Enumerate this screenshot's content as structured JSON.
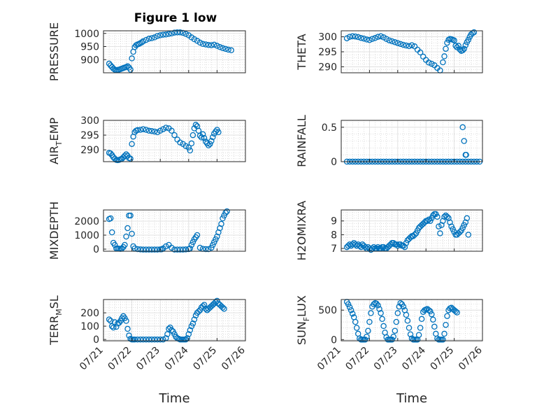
{
  "figure_title": "Figure 1 low",
  "marker_color": "#0072BD",
  "x_tick_labels": [
    "07/21",
    "07/22",
    "07/23",
    "07/24",
    "07/25",
    "07/26"
  ],
  "chart_data": [
    {
      "type": "scatter",
      "title": "Figure 1 low",
      "ylabel": "PRESSURE",
      "xlabel": "",
      "xlim": [
        0,
        5
      ],
      "ylim": [
        850,
        1010
      ],
      "yticks": [
        900,
        950,
        1000
      ],
      "grid": true,
      "x": [
        0.2,
        0.25,
        0.3,
        0.35,
        0.4,
        0.45,
        0.5,
        0.55,
        0.6,
        0.65,
        0.7,
        0.75,
        0.8,
        0.85,
        0.9,
        0.95,
        1.0,
        1.05,
        1.1,
        1.15,
        1.2,
        1.25,
        1.3,
        1.35,
        1.4,
        1.5,
        1.6,
        1.7,
        1.8,
        1.9,
        2.0,
        2.1,
        2.2,
        2.3,
        2.4,
        2.5,
        2.6,
        2.7,
        2.8,
        2.9,
        3.0,
        3.1,
        3.2,
        3.3,
        3.4,
        3.5,
        3.6,
        3.7,
        3.8,
        3.9,
        4.0,
        4.1,
        4.2,
        4.3,
        4.4,
        4.5
      ],
      "y": [
        885,
        878,
        872,
        866,
        862,
        860,
        861,
        862,
        864,
        866,
        868,
        870,
        872,
        875,
        870,
        862,
        905,
        930,
        948,
        955,
        958,
        960,
        963,
        966,
        970,
        975,
        980,
        982,
        985,
        990,
        993,
        995,
        996,
        998,
        1000,
        1003,
        1004,
        1004,
        1002,
        998,
        993,
        985,
        978,
        972,
        965,
        960,
        958,
        956,
        955,
        957,
        953,
        948,
        944,
        941,
        938,
        936
      ]
    },
    {
      "type": "scatter",
      "ylabel": "THETA",
      "xlabel": "",
      "xlim": [
        0,
        5
      ],
      "ylim": [
        288,
        302
      ],
      "yticks": [
        290,
        295,
        300
      ],
      "grid": true,
      "x": [
        0.2,
        0.3,
        0.4,
        0.5,
        0.6,
        0.7,
        0.8,
        0.9,
        1.0,
        1.1,
        1.2,
        1.3,
        1.4,
        1.5,
        1.6,
        1.7,
        1.8,
        1.9,
        2.0,
        2.1,
        2.2,
        2.3,
        2.4,
        2.5,
        2.6,
        2.7,
        2.8,
        2.9,
        3.0,
        3.1,
        3.2,
        3.3,
        3.4,
        3.5,
        3.6,
        3.65,
        3.7,
        3.75,
        3.8,
        3.85,
        3.9,
        3.95,
        4.0,
        4.05,
        4.1,
        4.15,
        4.2,
        4.25,
        4.3,
        4.35,
        4.4,
        4.45,
        4.5,
        4.55,
        4.6,
        4.65,
        4.7
      ],
      "y": [
        299.5,
        300,
        300.2,
        300.1,
        299.9,
        299.6,
        299.4,
        299.1,
        298.9,
        299.3,
        299.6,
        300,
        300.2,
        299.8,
        299.3,
        298.8,
        298.5,
        298.2,
        297.9,
        297.6,
        297.3,
        297.1,
        296.9,
        297.2,
        296.8,
        295.7,
        294.8,
        293.4,
        292.3,
        291.4,
        291.0,
        290.5,
        289.6,
        288.8,
        291.5,
        293.5,
        296.0,
        298.0,
        299.0,
        299.3,
        299.2,
        299.0,
        298.8,
        297.0,
        296.5,
        297.0,
        295.8,
        295.3,
        295.5,
        296.0,
        297.2,
        298.2,
        299.0,
        300.0,
        300.8,
        301.2,
        301.5
      ]
    },
    {
      "type": "scatter",
      "ylabel": "AIR_TEMP",
      "ylabel_main": "AIR",
      "ylabel_sub": "T",
      "ylabel_rest": "EMP",
      "xlabel": "",
      "xlim": [
        0,
        5
      ],
      "ylim": [
        286,
        300
      ],
      "yticks": [
        290,
        295,
        300
      ],
      "grid": true,
      "x": [
        0.2,
        0.25,
        0.3,
        0.35,
        0.4,
        0.45,
        0.5,
        0.55,
        0.6,
        0.65,
        0.7,
        0.75,
        0.8,
        0.85,
        0.9,
        0.95,
        1.0,
        1.05,
        1.1,
        1.15,
        1.2,
        1.3,
        1.4,
        1.5,
        1.6,
        1.7,
        1.8,
        1.9,
        2.0,
        2.1,
        2.2,
        2.3,
        2.4,
        2.5,
        2.6,
        2.7,
        2.8,
        2.9,
        3.0,
        3.05,
        3.1,
        3.15,
        3.2,
        3.25,
        3.3,
        3.35,
        3.4,
        3.45,
        3.5,
        3.55,
        3.6,
        3.65,
        3.7,
        3.75,
        3.8,
        3.85,
        3.9,
        3.95,
        4.0,
        4.05
      ],
      "y": [
        289.0,
        288.8,
        288.2,
        287.5,
        287.0,
        286.6,
        286.5,
        286.6,
        286.8,
        287.0,
        287.5,
        288.0,
        288.5,
        288.0,
        287.2,
        287.0,
        292.0,
        294.5,
        296.0,
        296.5,
        296.7,
        296.8,
        297.0,
        296.8,
        296.5,
        296.4,
        296.2,
        296.0,
        296.5,
        297.0,
        297.5,
        297.3,
        296.5,
        295.0,
        293.5,
        292.5,
        292.0,
        291.3,
        290.8,
        289.8,
        292.2,
        295.0,
        297.3,
        298.5,
        298.0,
        296.5,
        294.8,
        294.2,
        295.3,
        294.0,
        292.8,
        292.2,
        291.5,
        292.0,
        293.0,
        294.3,
        295.5,
        296.2,
        296.8,
        296.0
      ]
    },
    {
      "type": "scatter",
      "ylabel": "RAINFALL",
      "xlabel": "",
      "xlim": [
        0,
        5
      ],
      "ylim": [
        0,
        0.6
      ],
      "yticks": [
        0,
        0.5
      ],
      "ytick_labels": [
        "0",
        "0.5"
      ],
      "grid": true,
      "x": [
        0.2,
        0.3,
        0.4,
        0.5,
        0.6,
        0.7,
        0.8,
        0.9,
        1.0,
        1.1,
        1.2,
        1.3,
        1.4,
        1.5,
        1.6,
        1.7,
        1.8,
        1.9,
        2.0,
        2.1,
        2.2,
        2.3,
        2.4,
        2.5,
        2.6,
        2.7,
        2.8,
        2.9,
        3.0,
        3.1,
        3.2,
        3.3,
        3.4,
        3.5,
        3.6,
        3.7,
        3.8,
        3.9,
        4.0,
        4.1,
        4.2,
        4.3,
        4.4,
        4.5,
        4.6,
        4.7,
        4.8,
        4.9,
        4.3,
        4.35,
        4.4,
        4.42
      ],
      "y": [
        0,
        0,
        0,
        0,
        0,
        0,
        0,
        0,
        0,
        0,
        0,
        0,
        0,
        0,
        0,
        0,
        0,
        0,
        0,
        0,
        0,
        0,
        0,
        0,
        0,
        0,
        0,
        0,
        0,
        0,
        0,
        0,
        0,
        0,
        0,
        0,
        0,
        0,
        0,
        0,
        0,
        0,
        0,
        0,
        0,
        0,
        0,
        0,
        0.5,
        0.3,
        0.1,
        0.1
      ]
    },
    {
      "type": "scatter",
      "ylabel": "MIXDEPTH",
      "xlabel": "",
      "xlim": [
        0,
        5
      ],
      "ylim": [
        -150,
        2800
      ],
      "yticks": [
        0,
        1000,
        2000
      ],
      "grid": true,
      "x": [
        0.2,
        0.25,
        0.3,
        0.35,
        0.4,
        0.45,
        0.5,
        0.55,
        0.6,
        0.65,
        0.7,
        0.75,
        0.8,
        0.85,
        0.9,
        0.95,
        1.0,
        1.05,
        1.1,
        1.2,
        1.3,
        1.4,
        1.5,
        1.6,
        1.7,
        1.8,
        1.9,
        2.0,
        2.05,
        2.1,
        2.2,
        2.3,
        2.4,
        2.5,
        2.6,
        2.7,
        2.8,
        2.9,
        3.0,
        3.05,
        3.1,
        3.15,
        3.2,
        3.25,
        3.3,
        3.4,
        3.5,
        3.6,
        3.7,
        3.8,
        3.85,
        3.9,
        3.95,
        4.0,
        4.05,
        4.1,
        4.15,
        4.2,
        4.25,
        4.3,
        4.35
      ],
      "y": [
        2150,
        2200,
        1200,
        450,
        300,
        50,
        50,
        30,
        20,
        50,
        150,
        300,
        900,
        1500,
        2400,
        2400,
        1100,
        200,
        50,
        0,
        -20,
        -30,
        -30,
        -30,
        -30,
        -30,
        -30,
        -20,
        -10,
        50,
        200,
        300,
        100,
        -30,
        -30,
        -30,
        -30,
        -20,
        0,
        50,
        300,
        500,
        700,
        850,
        1000,
        100,
        20,
        0,
        0,
        100,
        300,
        500,
        700,
        900,
        1200,
        1500,
        1800,
        2200,
        2400,
        2600,
        2700
      ]
    },
    {
      "type": "scatter",
      "ylabel": "H2OMIXRA",
      "xlabel": "",
      "xlim": [
        0,
        5
      ],
      "ylim": [
        6.8,
        9.8
      ],
      "yticks": [
        7,
        8,
        9
      ],
      "grid": true,
      "x": [
        0.2,
        0.25,
        0.3,
        0.35,
        0.4,
        0.45,
        0.5,
        0.55,
        0.6,
        0.65,
        0.7,
        0.75,
        0.8,
        0.85,
        0.9,
        0.95,
        1.0,
        1.05,
        1.1,
        1.15,
        1.2,
        1.25,
        1.3,
        1.35,
        1.4,
        1.45,
        1.5,
        1.55,
        1.6,
        1.65,
        1.7,
        1.75,
        1.8,
        1.85,
        1.9,
        1.95,
        2.0,
        2.05,
        2.1,
        2.15,
        2.2,
        2.25,
        2.3,
        2.35,
        2.4,
        2.45,
        2.5,
        2.55,
        2.6,
        2.65,
        2.7,
        2.75,
        2.8,
        2.85,
        2.9,
        2.95,
        3.0,
        3.05,
        3.1,
        3.15,
        3.2,
        3.25,
        3.3,
        3.35,
        3.4,
        3.45,
        3.5,
        3.55,
        3.6,
        3.65,
        3.7,
        3.75,
        3.8,
        3.85,
        3.9,
        3.95,
        4.0,
        4.05,
        4.1,
        4.15,
        4.2,
        4.25,
        4.3,
        4.35,
        4.4,
        4.45,
        4.5
      ],
      "y": [
        7.1,
        7.2,
        7.3,
        7.2,
        7.3,
        7.4,
        7.3,
        7.2,
        7.3,
        7.2,
        7.1,
        7.3,
        7.2,
        7.1,
        7.0,
        7.1,
        7.0,
        6.9,
        7.0,
        7.1,
        7.0,
        7.0,
        7.1,
        7.0,
        7.0,
        7.1,
        7.1,
        7.0,
        7.0,
        7.1,
        7.2,
        7.3,
        7.4,
        7.4,
        7.3,
        7.3,
        7.2,
        7.3,
        7.3,
        7.2,
        7.2,
        7.1,
        7.4,
        7.6,
        7.7,
        7.8,
        7.9,
        7.9,
        8.0,
        8.1,
        8.3,
        8.5,
        8.6,
        8.7,
        8.8,
        8.9,
        9.0,
        9.0,
        9.1,
        9.0,
        9.2,
        9.4,
        9.5,
        9.5,
        9.3,
        8.6,
        8.1,
        8.7,
        9.0,
        9.3,
        9.4,
        9.3,
        9.2,
        8.9,
        8.6,
        8.4,
        8.2,
        8.0,
        8.0,
        8.1,
        8.2,
        8.3,
        8.5,
        8.7,
        8.9,
        9.2,
        8.0
      ]
    },
    {
      "type": "scatter",
      "ylabel": "TERR_MSL",
      "ylabel_main": "TERR",
      "ylabel_sub": "M",
      "ylabel_rest": "SL",
      "xlabel": "Time",
      "xlim": [
        0,
        5
      ],
      "ylim": [
        -10,
        300
      ],
      "yticks": [
        0,
        100,
        200
      ],
      "grid": true,
      "x": [
        0.2,
        0.25,
        0.3,
        0.35,
        0.4,
        0.45,
        0.5,
        0.55,
        0.6,
        0.65,
        0.7,
        0.75,
        0.8,
        0.85,
        0.9,
        0.95,
        1.0,
        1.05,
        1.1,
        1.2,
        1.3,
        1.4,
        1.5,
        1.6,
        1.7,
        1.8,
        1.9,
        2.0,
        2.1,
        2.2,
        2.25,
        2.3,
        2.35,
        2.4,
        2.45,
        2.5,
        2.55,
        2.6,
        2.65,
        2.7,
        2.75,
        2.8,
        2.85,
        2.9,
        2.95,
        3.0,
        3.05,
        3.1,
        3.15,
        3.2,
        3.25,
        3.3,
        3.35,
        3.4,
        3.45,
        3.5,
        3.55,
        3.6,
        3.65,
        3.7,
        3.75,
        3.8,
        3.85,
        3.9,
        3.95,
        4.0,
        4.05,
        4.1,
        4.15,
        4.2,
        4.25
      ],
      "y": [
        150,
        140,
        100,
        90,
        130,
        95,
        120,
        125,
        140,
        160,
        175,
        160,
        140,
        80,
        30,
        5,
        0,
        0,
        0,
        0,
        0,
        0,
        0,
        0,
        0,
        0,
        0,
        0,
        0,
        10,
        40,
        80,
        90,
        70,
        60,
        40,
        20,
        10,
        5,
        0,
        0,
        0,
        0,
        0,
        10,
        40,
        70,
        100,
        120,
        150,
        180,
        200,
        210,
        220,
        240,
        250,
        260,
        230,
        220,
        230,
        240,
        250,
        260,
        270,
        280,
        290,
        270,
        260,
        250,
        240,
        230
      ]
    },
    {
      "type": "scatter",
      "ylabel": "SUN_FLUX",
      "ylabel_main": "SUN",
      "ylabel_sub": "F",
      "ylabel_rest": "LUX",
      "xlabel": "Time",
      "xlim": [
        0,
        5
      ],
      "ylim": [
        -20,
        680
      ],
      "yticks": [
        0,
        500
      ],
      "grid": true,
      "x": [
        0.2,
        0.25,
        0.3,
        0.35,
        0.4,
        0.45,
        0.5,
        0.55,
        0.6,
        0.65,
        0.7,
        0.75,
        0.8,
        0.85,
        0.9,
        0.95,
        1.0,
        1.05,
        1.1,
        1.15,
        1.2,
        1.25,
        1.3,
        1.35,
        1.4,
        1.45,
        1.5,
        1.55,
        1.6,
        1.65,
        1.7,
        1.75,
        1.8,
        1.85,
        1.9,
        1.95,
        2.0,
        2.05,
        2.1,
        2.15,
        2.2,
        2.25,
        2.3,
        2.35,
        2.4,
        2.45,
        2.5,
        2.55,
        2.6,
        2.65,
        2.7,
        2.75,
        2.8,
        2.85,
        2.9,
        2.95,
        3.0,
        3.05,
        3.1,
        3.15,
        3.2,
        3.25,
        3.3,
        3.35,
        3.4,
        3.45,
        3.5,
        3.55,
        3.6,
        3.65,
        3.7,
        3.75,
        3.8,
        3.85,
        3.9,
        3.95,
        4.0,
        4.05,
        4.1
      ],
      "y": [
        640,
        600,
        550,
        500,
        440,
        380,
        300,
        200,
        100,
        20,
        0,
        0,
        0,
        0,
        50,
        150,
        300,
        450,
        560,
        600,
        620,
        610,
        580,
        520,
        450,
        350,
        230,
        120,
        40,
        0,
        0,
        0,
        0,
        50,
        150,
        300,
        450,
        560,
        620,
        600,
        560,
        500,
        420,
        320,
        200,
        90,
        20,
        0,
        0,
        0,
        0,
        80,
        200,
        350,
        470,
        500,
        510,
        520,
        500,
        480,
        430,
        340,
        220,
        100,
        20,
        0,
        0,
        0,
        0,
        100,
        250,
        400,
        500,
        530,
        540,
        520,
        500,
        480,
        460
      ]
    }
  ]
}
